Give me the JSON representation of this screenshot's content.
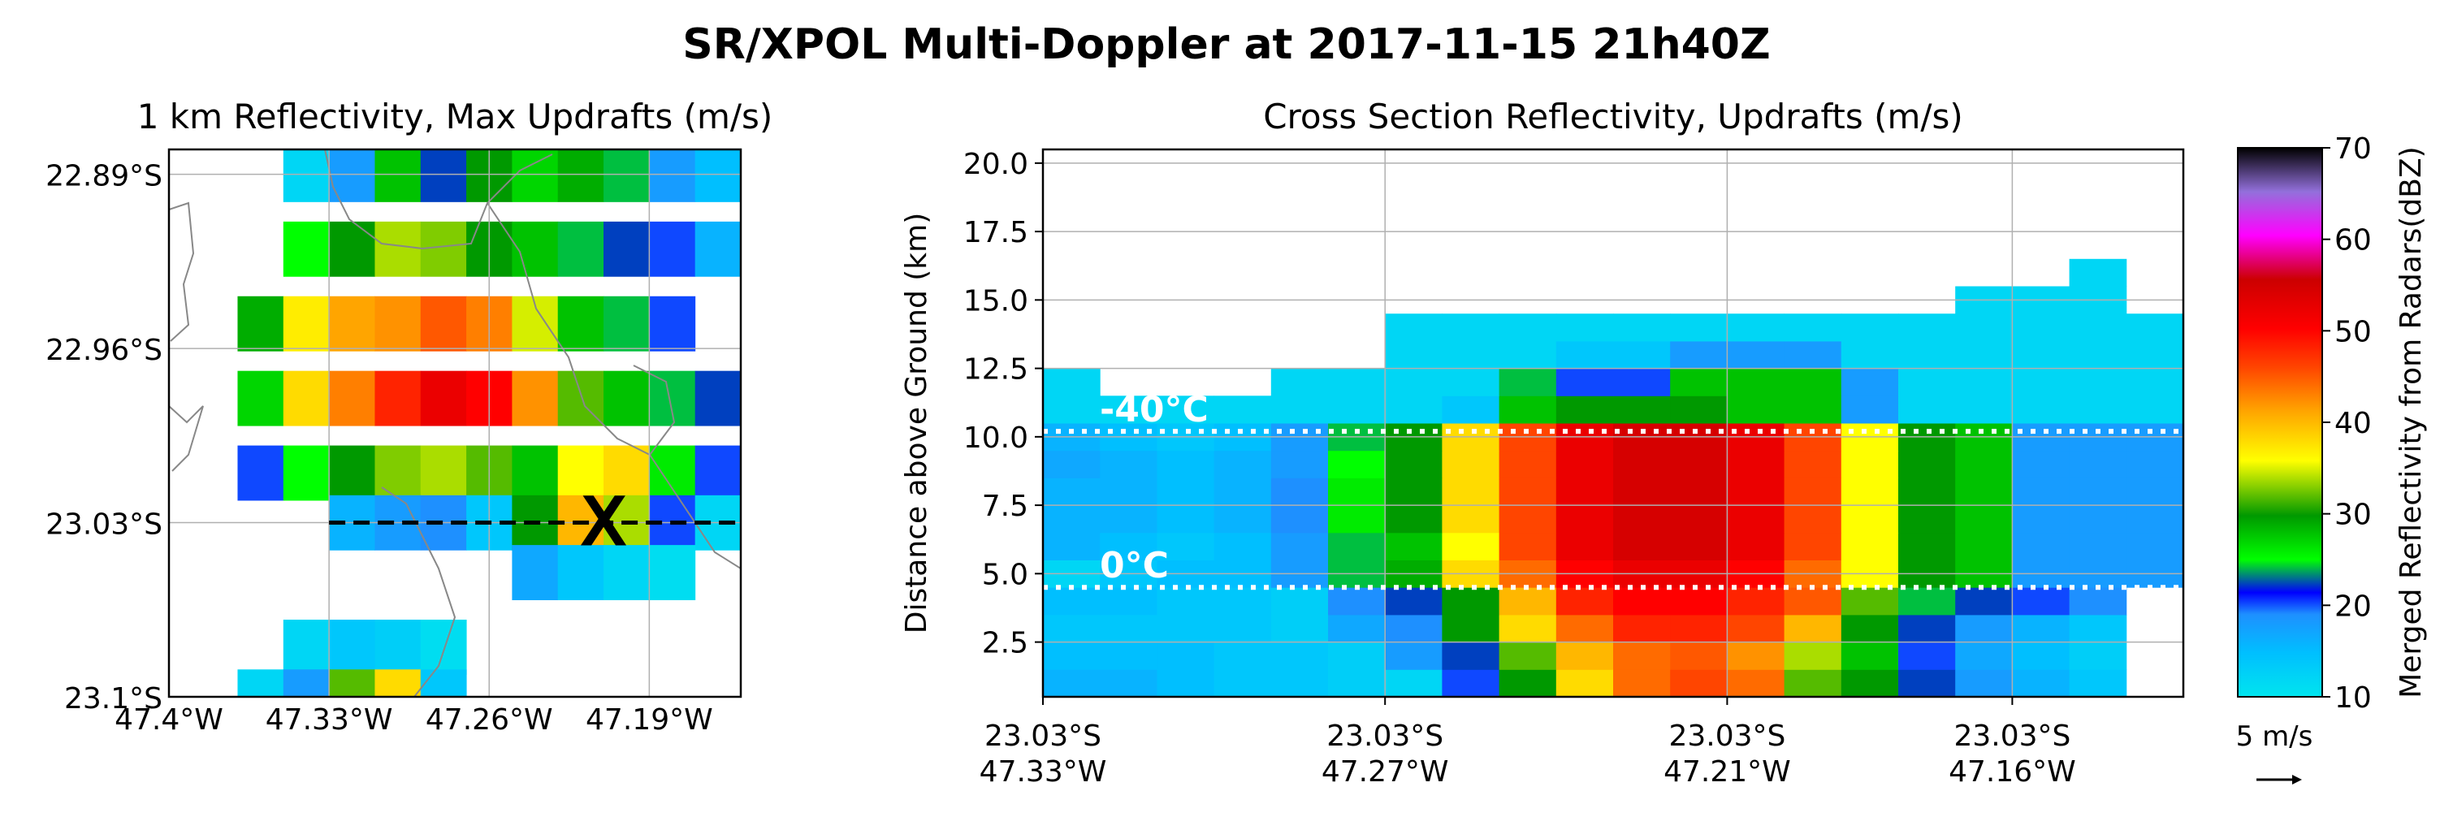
{
  "title": "SR/XPOL Multi-Doppler at 2017-11-15 21h40Z",
  "colors": {
    "reflectivity_scale": [
      "#00e5ee",
      "#00bfff",
      "#1e90ff",
      "#0000ff",
      "#00ff00",
      "#009900",
      "#ffff00",
      "#ffa500",
      "#ff4500",
      "#ff0000",
      "#cc0000",
      "#ff00ff",
      "#9370db",
      "#000000"
    ],
    "section_line": "#000000",
    "isotherm_line": "#ffffff",
    "county_border": "#888888"
  },
  "chart_data": [
    {
      "type": "heatmap",
      "title": "1 km Reflectivity, Max Updrafts (m/s)",
      "xlabel": "",
      "ylabel": "",
      "x_tick_labels": [
        "47.4°W",
        "47.33°W",
        "47.26°W",
        "47.19°W"
      ],
      "y_tick_labels": [
        "22.89°S",
        "22.96°S",
        "23.03°S",
        "23.1°S"
      ],
      "xlim": [
        -47.4,
        -47.15
      ],
      "ylim": [
        -23.1,
        -22.88
      ],
      "grid": true,
      "cross_section_line": {
        "from": [
          -47.33,
          -23.03
        ],
        "to": [
          -47.15,
          -23.03
        ]
      },
      "marker": {
        "symbol": "X",
        "lon": -47.21,
        "lat": -23.03
      },
      "cells": [
        {
          "lon": -47.34,
          "lat": -22.89,
          "dbz": 12
        },
        {
          "lon": -47.32,
          "lat": -22.89,
          "dbz": 18
        },
        {
          "lon": -47.3,
          "lat": -22.89,
          "dbz": 28
        },
        {
          "lon": -47.28,
          "lat": -22.89,
          "dbz": 22
        },
        {
          "lon": -47.26,
          "lat": -22.89,
          "dbz": 30
        },
        {
          "lon": -47.24,
          "lat": -22.89,
          "dbz": 27
        },
        {
          "lon": -47.22,
          "lat": -22.89,
          "dbz": 29
        },
        {
          "lon": -47.2,
          "lat": -22.89,
          "dbz": 24
        },
        {
          "lon": -47.18,
          "lat": -22.89,
          "dbz": 18
        },
        {
          "lon": -47.16,
          "lat": -22.89,
          "dbz": 15
        },
        {
          "lon": -47.34,
          "lat": -22.92,
          "dbz": 25
        },
        {
          "lon": -47.32,
          "lat": -22.92,
          "dbz": 30
        },
        {
          "lon": -47.3,
          "lat": -22.92,
          "dbz": 34
        },
        {
          "lon": -47.28,
          "lat": -22.92,
          "dbz": 33
        },
        {
          "lon": -47.26,
          "lat": -22.92,
          "dbz": 30
        },
        {
          "lon": -47.24,
          "lat": -22.92,
          "dbz": 28
        },
        {
          "lon": -47.22,
          "lat": -22.92,
          "dbz": 24
        },
        {
          "lon": -47.2,
          "lat": -22.92,
          "dbz": 22
        },
        {
          "lon": -47.18,
          "lat": -22.92,
          "dbz": 20
        },
        {
          "lon": -47.16,
          "lat": -22.92,
          "dbz": 16
        },
        {
          "lon": -47.36,
          "lat": -22.95,
          "dbz": 29
        },
        {
          "lon": -47.34,
          "lat": -22.95,
          "dbz": 37
        },
        {
          "lon": -47.32,
          "lat": -22.95,
          "dbz": 41
        },
        {
          "lon": -47.3,
          "lat": -22.95,
          "dbz": 42
        },
        {
          "lon": -47.28,
          "lat": -22.95,
          "dbz": 45
        },
        {
          "lon": -47.26,
          "lat": -22.95,
          "dbz": 43
        },
        {
          "lon": -47.24,
          "lat": -22.95,
          "dbz": 35
        },
        {
          "lon": -47.22,
          "lat": -22.95,
          "dbz": 28
        },
        {
          "lon": -47.2,
          "lat": -22.95,
          "dbz": 24
        },
        {
          "lon": -47.18,
          "lat": -22.95,
          "dbz": 20
        },
        {
          "lon": -47.36,
          "lat": -22.98,
          "dbz": 27
        },
        {
          "lon": -47.34,
          "lat": -22.98,
          "dbz": 38
        },
        {
          "lon": -47.32,
          "lat": -22.98,
          "dbz": 43
        },
        {
          "lon": -47.3,
          "lat": -22.98,
          "dbz": 48
        },
        {
          "lon": -47.28,
          "lat": -22.98,
          "dbz": 52
        },
        {
          "lon": -47.26,
          "lat": -22.98,
          "dbz": 50
        },
        {
          "lon": -47.24,
          "lat": -22.98,
          "dbz": 42
        },
        {
          "lon": -47.22,
          "lat": -22.98,
          "dbz": 32
        },
        {
          "lon": -47.2,
          "lat": -22.98,
          "dbz": 28
        },
        {
          "lon": -47.18,
          "lat": -22.98,
          "dbz": 24
        },
        {
          "lon": -47.16,
          "lat": -22.98,
          "dbz": 22
        },
        {
          "lon": -47.36,
          "lat": -23.01,
          "dbz": 20
        },
        {
          "lon": -47.34,
          "lat": -23.01,
          "dbz": 25
        },
        {
          "lon": -47.32,
          "lat": -23.01,
          "dbz": 30
        },
        {
          "lon": -47.3,
          "lat": -23.01,
          "dbz": 33
        },
        {
          "lon": -47.28,
          "lat": -23.01,
          "dbz": 34
        },
        {
          "lon": -47.26,
          "lat": -23.01,
          "dbz": 32
        },
        {
          "lon": -47.24,
          "lat": -23.01,
          "dbz": 28
        },
        {
          "lon": -47.22,
          "lat": -23.01,
          "dbz": 36
        },
        {
          "lon": -47.2,
          "lat": -23.01,
          "dbz": 38
        },
        {
          "lon": -47.18,
          "lat": -23.01,
          "dbz": 26
        },
        {
          "lon": -47.16,
          "lat": -23.01,
          "dbz": 20
        },
        {
          "lon": -47.32,
          "lat": -23.03,
          "dbz": 16
        },
        {
          "lon": -47.3,
          "lat": -23.03,
          "dbz": 18
        },
        {
          "lon": -47.28,
          "lat": -23.03,
          "dbz": 19
        },
        {
          "lon": -47.26,
          "lat": -23.03,
          "dbz": 14
        },
        {
          "lon": -47.24,
          "lat": -23.03,
          "dbz": 30
        },
        {
          "lon": -47.22,
          "lat": -23.03,
          "dbz": 40
        },
        {
          "lon": -47.2,
          "lat": -23.03,
          "dbz": 34
        },
        {
          "lon": -47.18,
          "lat": -23.03,
          "dbz": 20
        },
        {
          "lon": -47.16,
          "lat": -23.03,
          "dbz": 12
        },
        {
          "lon": -47.24,
          "lat": -23.05,
          "dbz": 17
        },
        {
          "lon": -47.22,
          "lat": -23.05,
          "dbz": 14
        },
        {
          "lon": -47.2,
          "lat": -23.05,
          "dbz": 12
        },
        {
          "lon": -47.18,
          "lat": -23.05,
          "dbz": 11
        },
        {
          "lon": -47.34,
          "lat": -23.08,
          "dbz": 12
        },
        {
          "lon": -47.32,
          "lat": -23.08,
          "dbz": 14
        },
        {
          "lon": -47.3,
          "lat": -23.08,
          "dbz": 13
        },
        {
          "lon": -47.28,
          "lat": -23.08,
          "dbz": 11
        },
        {
          "lon": -47.36,
          "lat": -23.1,
          "dbz": 12
        },
        {
          "lon": -47.34,
          "lat": -23.1,
          "dbz": 18
        },
        {
          "lon": -47.32,
          "lat": -23.1,
          "dbz": 32
        },
        {
          "lon": -47.3,
          "lat": -23.1,
          "dbz": 38
        },
        {
          "lon": -47.28,
          "lat": -23.1,
          "dbz": 14
        }
      ]
    },
    {
      "type": "heatmap",
      "title": "Cross Section Reflectivity, Updrafts (m/s)",
      "xlabel": "",
      "ylabel": "Distance above Ground (km)",
      "x_tick_labels": [
        [
          "23.03°S",
          "47.33°W"
        ],
        [
          "23.03°S",
          "47.27°W"
        ],
        [
          "23.03°S",
          "47.21°W"
        ],
        [
          "23.03°S",
          "47.16°W"
        ]
      ],
      "x_ticks": [
        -47.33,
        -47.27,
        -47.21,
        -47.16
      ],
      "y_ticks": [
        2.5,
        5.0,
        7.5,
        10.0,
        12.5,
        15.0,
        17.5,
        20.0
      ],
      "y_tick_labels": [
        "2.5",
        "5.0",
        "7.5",
        "10.0",
        "12.5",
        "15.0",
        "17.5",
        "20.0"
      ],
      "xlim": [
        -47.33,
        -47.13
      ],
      "ylim": [
        0.5,
        20.5
      ],
      "grid": true,
      "isotherms": [
        {
          "label": "-40°C",
          "height_km": 10.2
        },
        {
          "label": "0°C",
          "height_km": 4.5
        }
      ],
      "x_columns": [
        -47.33,
        -47.32,
        -47.31,
        -47.3,
        -47.29,
        -47.28,
        -47.27,
        -47.26,
        -47.25,
        -47.24,
        -47.23,
        -47.22,
        -47.21,
        -47.2,
        -47.19,
        -47.18,
        -47.17,
        -47.16,
        -47.15,
        -47.14
      ],
      "z_levels": [
        1.0,
        2.0,
        3.0,
        4.0,
        5.0,
        6.0,
        7.0,
        8.0,
        9.0,
        10.0,
        11.0,
        12.0,
        13.0,
        14.0,
        15.0,
        16.0
      ],
      "dbz_rows": [
        [
          16,
          16,
          15,
          14,
          14,
          13,
          12,
          20,
          30,
          38,
          44,
          46,
          44,
          32,
          30,
          22,
          18,
          16,
          14,
          0
        ],
        [
          15,
          15,
          15,
          14,
          14,
          13,
          18,
          22,
          32,
          40,
          44,
          45,
          42,
          34,
          28,
          20,
          17,
          15,
          13,
          0
        ],
        [
          14,
          14,
          14,
          14,
          13,
          17,
          19,
          30,
          38,
          44,
          48,
          48,
          46,
          40,
          30,
          22,
          18,
          16,
          14,
          0
        ],
        [
          15,
          15,
          14,
          14,
          13,
          19,
          22,
          30,
          40,
          48,
          50,
          50,
          48,
          45,
          32,
          24,
          22,
          20,
          19,
          0
        ],
        [
          12,
          14,
          15,
          15,
          18,
          24,
          29,
          38,
          44,
          50,
          52,
          52,
          50,
          44,
          36,
          30,
          28,
          18,
          18,
          18
        ],
        [
          16,
          15,
          14,
          15,
          18,
          24,
          28,
          36,
          46,
          52,
          54,
          54,
          52,
          46,
          36,
          30,
          28,
          18,
          18,
          18
        ],
        [
          16,
          16,
          15,
          16,
          19,
          26,
          30,
          38,
          46,
          52,
          54,
          54,
          52,
          46,
          36,
          30,
          28,
          18,
          18,
          18
        ],
        [
          16,
          16,
          15,
          16,
          19,
          26,
          30,
          38,
          46,
          52,
          54,
          54,
          52,
          46,
          36,
          30,
          28,
          18,
          18,
          18
        ],
        [
          17,
          16,
          15,
          16,
          18,
          25,
          30,
          38,
          46,
          52,
          54,
          54,
          52,
          46,
          36,
          30,
          28,
          18,
          18,
          18
        ],
        [
          16,
          15,
          14,
          15,
          18,
          24,
          30,
          38,
          46,
          52,
          54,
          54,
          52,
          46,
          36,
          30,
          28,
          18,
          18,
          18
        ],
        [
          12,
          12,
          12,
          12,
          12,
          12,
          12,
          14,
          28,
          30,
          30,
          30,
          28,
          28,
          18,
          12,
          12,
          12,
          12,
          12
        ],
        [
          12,
          0,
          0,
          0,
          12,
          12,
          12,
          12,
          24,
          20,
          20,
          28,
          28,
          28,
          18,
          12,
          12,
          12,
          12,
          12
        ],
        [
          0,
          0,
          0,
          0,
          0,
          0,
          12,
          12,
          12,
          14,
          14,
          18,
          18,
          18,
          12,
          12,
          12,
          12,
          12,
          12
        ],
        [
          0,
          0,
          0,
          0,
          0,
          0,
          12,
          12,
          12,
          12,
          12,
          12,
          12,
          12,
          12,
          12,
          12,
          12,
          12,
          12
        ],
        [
          0,
          0,
          0,
          0,
          0,
          0,
          0,
          0,
          0,
          0,
          0,
          0,
          0,
          0,
          0,
          0,
          12,
          12,
          12,
          0
        ],
        [
          0,
          0,
          0,
          0,
          0,
          0,
          0,
          0,
          0,
          0,
          0,
          0,
          0,
          0,
          0,
          0,
          0,
          0,
          12,
          0
        ]
      ]
    },
    {
      "type": "colorbar",
      "label": "Merged Reflectivity from Radars(dBZ)",
      "ticks": [
        10,
        20,
        30,
        40,
        50,
        60,
        70
      ],
      "tick_labels": [
        "10",
        "20",
        "30",
        "40",
        "50",
        "60",
        "70"
      ],
      "range": [
        10,
        70
      ]
    }
  ],
  "vector_key": {
    "label": "5 m/s"
  }
}
